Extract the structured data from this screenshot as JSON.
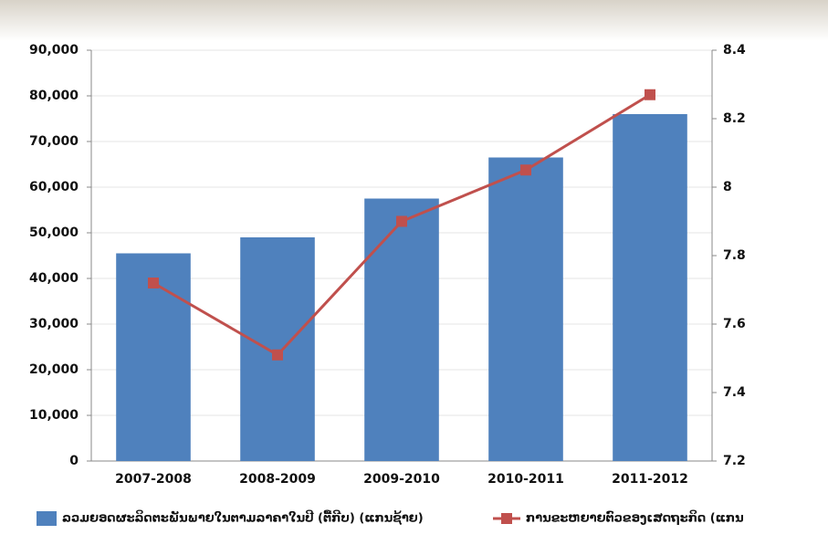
{
  "chart_data": {
    "type": "bar-line",
    "categories": [
      "2007-2008",
      "2008-2009",
      "2009-2010",
      "2010-2011",
      "2011-2012"
    ],
    "series": [
      {
        "name": "ລວມຍອດຜະລິດຕະພັນພາຍໃນຕາມລາຄາໃນປີ (ຕື້ກີບ) (ແກນຊ້າຍ)",
        "type": "bar",
        "color": "#4f81bd",
        "values": [
          45500,
          49000,
          57500,
          66500,
          76000
        ]
      },
      {
        "name": "ການຂະຫຍາຍຕົວຂອງເສດຖະກິດ (ແກນ",
        "type": "line",
        "axis": "y2",
        "color": "#c0504d",
        "values": [
          7.72,
          7.51,
          7.9,
          8.05,
          8.27
        ]
      }
    ],
    "ylim": [
      0,
      90000
    ],
    "yticks": [
      0,
      {
        "value": 10000,
        "label": "10,000"
      },
      {
        "value": 20000,
        "label": "20,000"
      },
      {
        "value": 30000,
        "label": "30,000"
      },
      {
        "value": 40000,
        "label": "40,000"
      },
      {
        "value": 50000,
        "label": "50,000"
      },
      {
        "value": 60000,
        "label": "60,000"
      },
      {
        "value": 70000,
        "label": "70,000"
      },
      {
        "value": 80000,
        "label": "80,000"
      },
      {
        "value": 90000,
        "label": "90,000"
      }
    ],
    "y2lim": [
      7.2,
      8.4
    ],
    "y2ticks": [
      7.2,
      7.4,
      7.6,
      7.8,
      8,
      8.2,
      8.4
    ],
    "grid": true
  }
}
